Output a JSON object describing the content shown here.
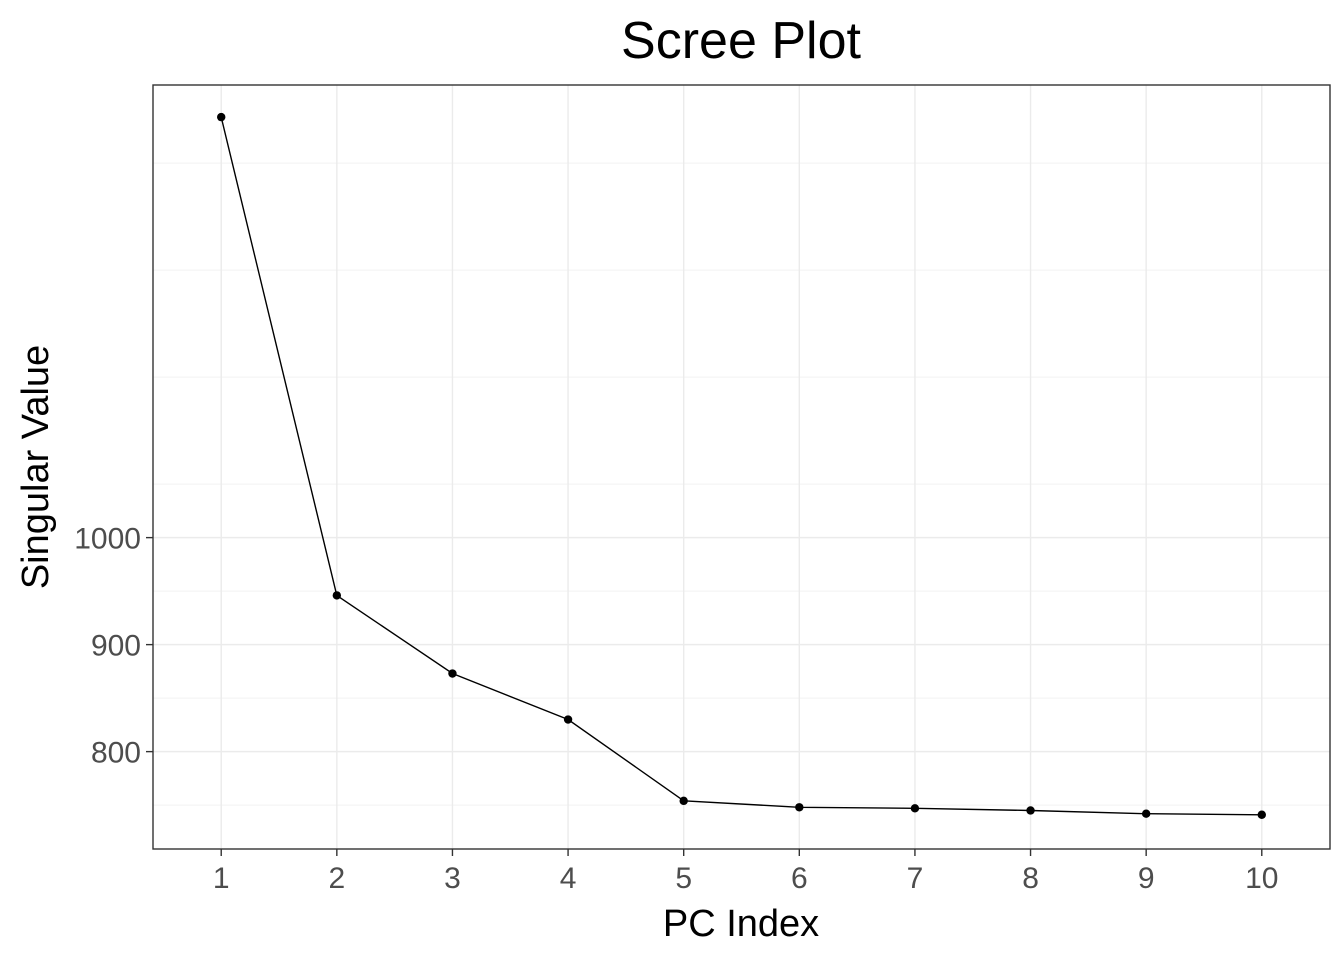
{
  "chart_data": {
    "type": "line",
    "title": "Scree Plot",
    "xlabel": "PC Index",
    "ylabel": "Singular Value",
    "x": [
      1,
      2,
      3,
      4,
      5,
      6,
      7,
      8,
      9,
      10
    ],
    "x_ticks": [
      "1",
      "2",
      "3",
      "4",
      "5",
      "6",
      "7",
      "8",
      "9",
      "10"
    ],
    "y_ticks": [
      800,
      900,
      1000
    ],
    "y_tick_labels": [
      "800",
      "900",
      "1000"
    ],
    "series": [
      {
        "values": [
          1393,
          946,
          873,
          830,
          754,
          748,
          747,
          745,
          742,
          741
        ]
      }
    ],
    "xlim": [
      0.41,
      10.59
    ],
    "ylim": [
      709,
      1423
    ],
    "grid": true,
    "legend": "none",
    "colors": {
      "line": "#000000",
      "point": "#000000",
      "grid": "#ebebeb",
      "border": "#333333",
      "tick_text": "#4d4d4d"
    }
  }
}
